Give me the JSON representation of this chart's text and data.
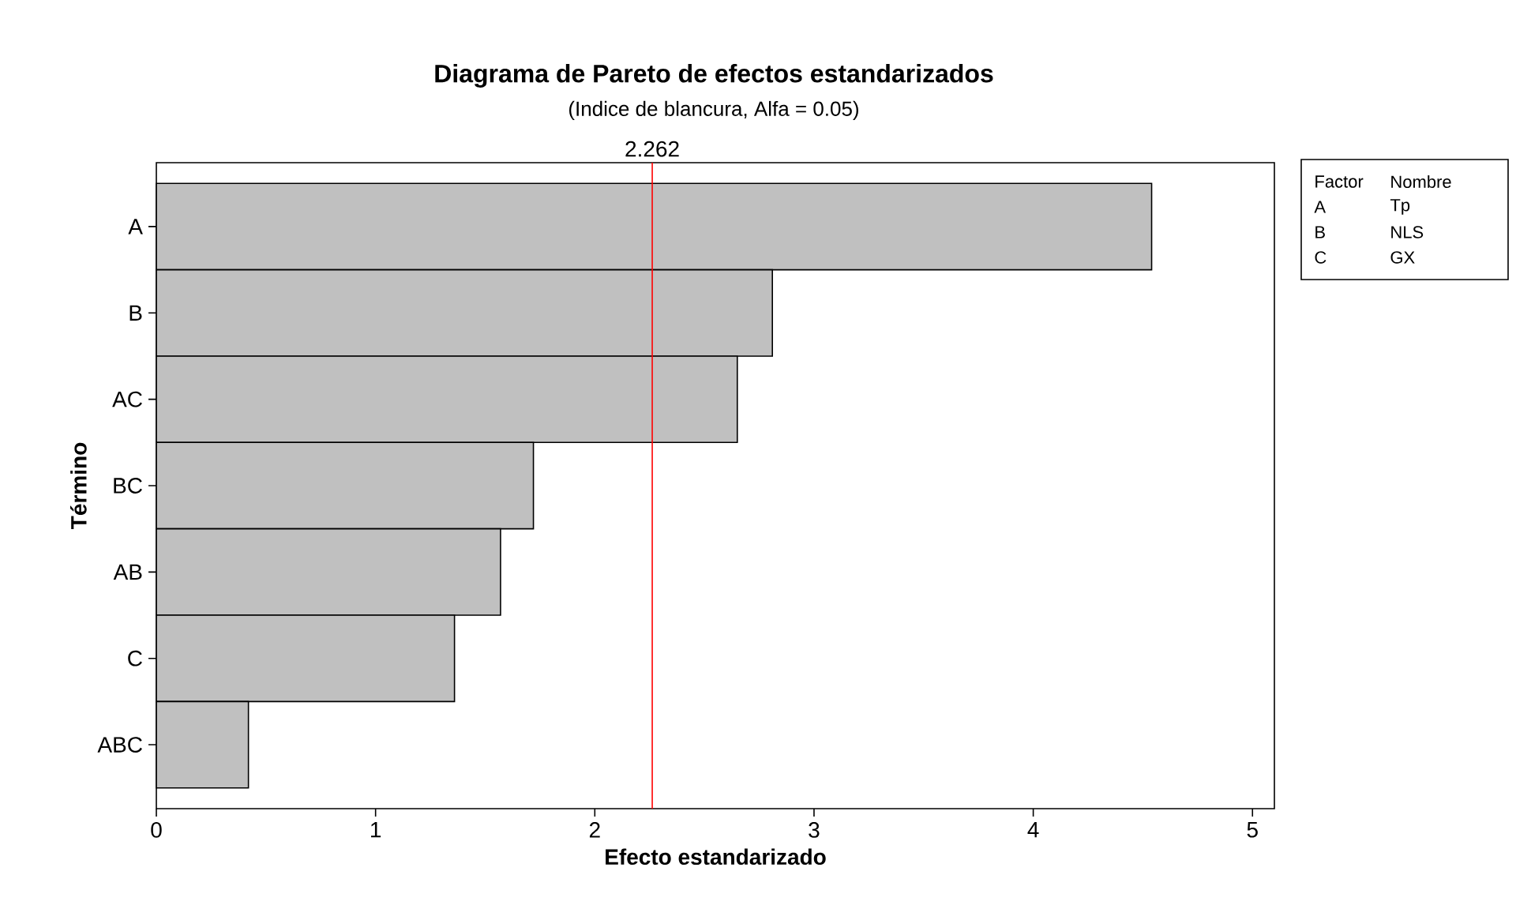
{
  "chart_data": {
    "type": "bar",
    "orientation": "horizontal",
    "title": "Diagrama de Pareto de efectos estandarizados",
    "subtitle": "(Indice de blancura, Alfa =  0.05)",
    "xlabel": "Efecto estandarizado",
    "ylabel": "Término",
    "categories": [
      "A",
      "B",
      "AC",
      "BC",
      "AB",
      "C",
      "ABC"
    ],
    "values": [
      4.54,
      2.81,
      2.65,
      1.72,
      1.57,
      1.36,
      0.42
    ],
    "color": "#c0c0c0",
    "xlim": [
      0,
      5.1
    ],
    "xticks": [
      0,
      1,
      2,
      3,
      4,
      5
    ],
    "ref_lines": [
      {
        "axis": "x",
        "value": 2.262,
        "label": "2.262",
        "color": "#ff0000"
      }
    ],
    "annotations": [
      "Factor",
      "Nombre",
      "A",
      "Tp",
      "B",
      "NLS",
      "C",
      "GX"
    ]
  }
}
